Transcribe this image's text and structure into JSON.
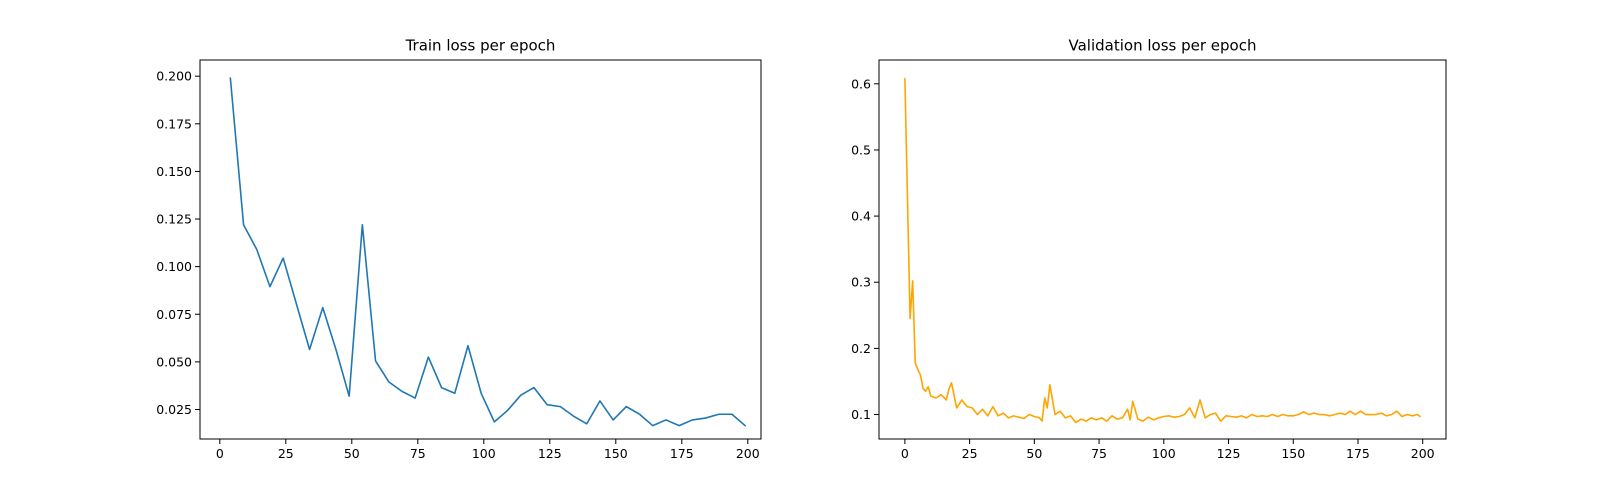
{
  "chart_data": [
    {
      "type": "line",
      "title": "Train loss per epoch",
      "xlabel": "",
      "ylabel": "",
      "xlim": [
        -7.5,
        205
      ],
      "ylim": [
        0.0095,
        0.2085
      ],
      "xticks": [
        0,
        25,
        50,
        75,
        100,
        125,
        150,
        175,
        200
      ],
      "yticks": [
        0.025,
        0.05,
        0.075,
        0.1,
        0.125,
        0.15,
        0.175,
        0.2
      ],
      "ytick_format": 3,
      "grid": false,
      "series": [
        {
          "color": "#1f77b4",
          "x": [
            4,
            9,
            14,
            19,
            24,
            29,
            34,
            39,
            44,
            49,
            54,
            59,
            64,
            69,
            74,
            79,
            84,
            89,
            94,
            99,
            104,
            109,
            114,
            119,
            124,
            129,
            134,
            139,
            144,
            149,
            154,
            159,
            164,
            169,
            174,
            179,
            184,
            189,
            194,
            199
          ],
          "y": [
            0.199,
            0.122,
            0.109,
            0.0895,
            0.1045,
            0.0805,
            0.0565,
            0.0785,
            0.0565,
            0.032,
            0.122,
            0.0505,
            0.0395,
            0.0345,
            0.031,
            0.0525,
            0.0365,
            0.0335,
            0.0585,
            0.0335,
            0.0185,
            0.0245,
            0.0325,
            0.0365,
            0.0275,
            0.0265,
            0.0215,
            0.0175,
            0.0295,
            0.0195,
            0.0265,
            0.0225,
            0.0165,
            0.0195,
            0.0165,
            0.0195,
            0.0205,
            0.0225,
            0.0225,
            0.0165
          ]
        }
      ]
    },
    {
      "type": "line",
      "title": "Validation loss per epoch",
      "xlabel": "",
      "ylabel": "",
      "xlim": [
        -10,
        209
      ],
      "ylim": [
        0.063,
        0.636
      ],
      "xticks": [
        0,
        25,
        50,
        75,
        100,
        125,
        150,
        175,
        200
      ],
      "yticks": [
        0.1,
        0.2,
        0.3,
        0.4,
        0.5,
        0.6
      ],
      "ytick_format": 1,
      "grid": false,
      "series": [
        {
          "color": "#ffa500",
          "x": [
            0,
            2,
            3,
            4,
            5,
            6,
            7,
            8,
            9,
            10,
            12,
            14,
            16,
            17,
            18,
            20,
            22,
            24,
            26,
            28,
            30,
            32,
            34,
            36,
            38,
            40,
            42,
            44,
            46,
            48,
            50,
            52,
            53,
            54,
            55,
            56,
            58,
            60,
            62,
            64,
            66,
            68,
            70,
            72,
            74,
            76,
            78,
            80,
            82,
            84,
            86,
            87,
            88,
            90,
            92,
            94,
            96,
            98,
            100,
            102,
            104,
            106,
            108,
            110,
            112,
            114,
            116,
            118,
            120,
            122,
            124,
            126,
            128,
            130,
            132,
            134,
            136,
            138,
            140,
            142,
            144,
            146,
            148,
            150,
            152,
            154,
            156,
            158,
            160,
            162,
            164,
            166,
            168,
            170,
            172,
            174,
            176,
            178,
            180,
            182,
            184,
            186,
            188,
            190,
            192,
            194,
            196,
            198,
            199
          ],
          "y": [
            0.608,
            0.245,
            0.302,
            0.178,
            0.168,
            0.16,
            0.14,
            0.135,
            0.142,
            0.128,
            0.125,
            0.13,
            0.122,
            0.138,
            0.148,
            0.11,
            0.122,
            0.112,
            0.11,
            0.1,
            0.108,
            0.098,
            0.112,
            0.098,
            0.102,
            0.095,
            0.098,
            0.096,
            0.094,
            0.1,
            0.097,
            0.095,
            0.09,
            0.125,
            0.11,
            0.145,
            0.1,
            0.105,
            0.095,
            0.098,
            0.088,
            0.093,
            0.09,
            0.095,
            0.092,
            0.095,
            0.09,
            0.098,
            0.093,
            0.095,
            0.108,
            0.092,
            0.12,
            0.093,
            0.09,
            0.096,
            0.092,
            0.095,
            0.097,
            0.098,
            0.096,
            0.097,
            0.1,
            0.11,
            0.095,
            0.122,
            0.095,
            0.1,
            0.102,
            0.09,
            0.098,
            0.097,
            0.096,
            0.098,
            0.095,
            0.1,
            0.097,
            0.098,
            0.097,
            0.1,
            0.097,
            0.1,
            0.098,
            0.098,
            0.1,
            0.104,
            0.1,
            0.102,
            0.1,
            0.1,
            0.098,
            0.1,
            0.102,
            0.1,
            0.105,
            0.1,
            0.105,
            0.1,
            0.1,
            0.1,
            0.102,
            0.098,
            0.1,
            0.105,
            0.097,
            0.1,
            0.098,
            0.1,
            0.097
          ]
        }
      ]
    }
  ]
}
